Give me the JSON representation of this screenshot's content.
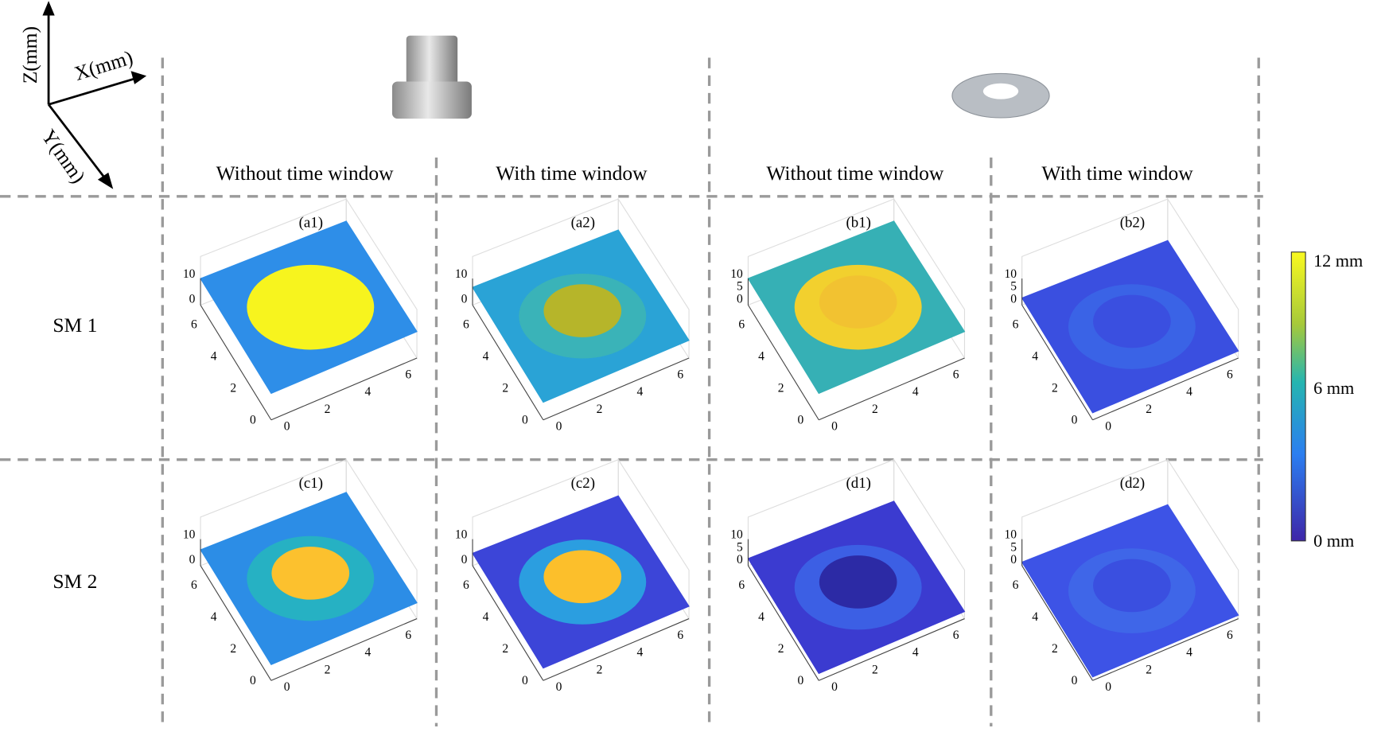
{
  "axes_legend": {
    "z": "Z(mm)",
    "x": "X(mm)",
    "y": "Y(mm)"
  },
  "columns": [
    "Without time window",
    "With time window",
    "Without time window",
    "With time window"
  ],
  "rows": [
    "SM 1",
    "SM 2"
  ],
  "panels": [
    {
      "label": "(a1)",
      "zticks": [
        "10",
        "0"
      ],
      "yticks": [
        "6",
        "4",
        "2",
        "0"
      ],
      "xticks": [
        "0",
        "2",
        "4",
        "6"
      ]
    },
    {
      "label": "(a2)",
      "zticks": [
        "10",
        "0"
      ],
      "yticks": [
        "6",
        "4",
        "2",
        "0"
      ],
      "xticks": [
        "0",
        "2",
        "4",
        "6"
      ]
    },
    {
      "label": "(b1)",
      "zticks": [
        "10",
        "5",
        "0"
      ],
      "yticks": [
        "6",
        "4",
        "2",
        "0"
      ],
      "xticks": [
        "0",
        "2",
        "4",
        "6"
      ]
    },
    {
      "label": "(b2)",
      "zticks": [
        "10",
        "5",
        "0"
      ],
      "yticks": [
        "6",
        "4",
        "2",
        "0"
      ],
      "xticks": [
        "0",
        "2",
        "4",
        "6"
      ]
    },
    {
      "label": "(c1)",
      "zticks": [
        "10",
        "0"
      ],
      "yticks": [
        "6",
        "4",
        "2",
        "0"
      ],
      "xticks": [
        "0",
        "2",
        "4",
        "6"
      ]
    },
    {
      "label": "(c2)",
      "zticks": [
        "10",
        "0"
      ],
      "yticks": [
        "6",
        "4",
        "2",
        "0"
      ],
      "xticks": [
        "0",
        "2",
        "4",
        "6"
      ]
    },
    {
      "label": "(d1)",
      "zticks": [
        "10",
        "5",
        "0"
      ],
      "yticks": [
        "6",
        "4",
        "2",
        "0"
      ],
      "xticks": [
        "0",
        "2",
        "4",
        "6"
      ]
    },
    {
      "label": "(d2)",
      "zticks": [
        "10",
        "5",
        "0"
      ],
      "yticks": [
        "6",
        "4",
        "2",
        "0"
      ],
      "xticks": [
        "0",
        "2",
        "4",
        "6"
      ]
    }
  ],
  "colorbar": {
    "labels": [
      "12 mm",
      "6 mm",
      "0 mm"
    ]
  }
}
